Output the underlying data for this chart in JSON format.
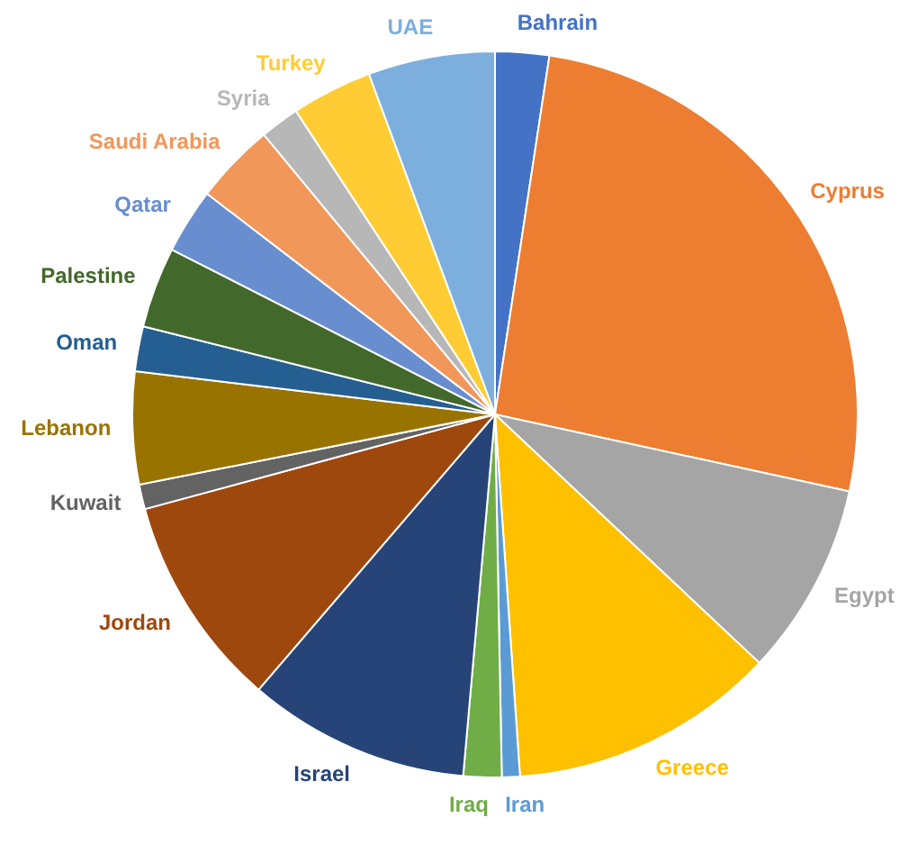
{
  "chart_data": {
    "type": "pie",
    "categories": [
      "Bahrain",
      "Cyprus",
      "Egypt",
      "Greece",
      "Iran",
      "Iraq",
      "Israel",
      "Jordan",
      "Kuwait",
      "Lebanon",
      "Oman",
      "Palestine",
      "Qatar",
      "Saudi Arabia",
      "Syria",
      "Turkey",
      "UAE"
    ],
    "values": [
      2.4,
      26,
      8.6,
      11.9,
      0.8,
      1.7,
      9.9,
      9.5,
      1.1,
      5,
      2,
      3.6,
      2.9,
      3.6,
      1.75,
      3.6,
      5.65
    ],
    "colors": [
      "#4472c4",
      "#ed7d31",
      "#a5a5a5",
      "#ffc000",
      "#5b9bd5",
      "#70ad47",
      "#264478",
      "#9e480e",
      "#636363",
      "#997300",
      "#255e91",
      "#43682b",
      "#698ed0",
      "#f1975a",
      "#b7b7b7",
      "#ffcd33",
      "#7cafdd"
    ],
    "legend": false
  }
}
